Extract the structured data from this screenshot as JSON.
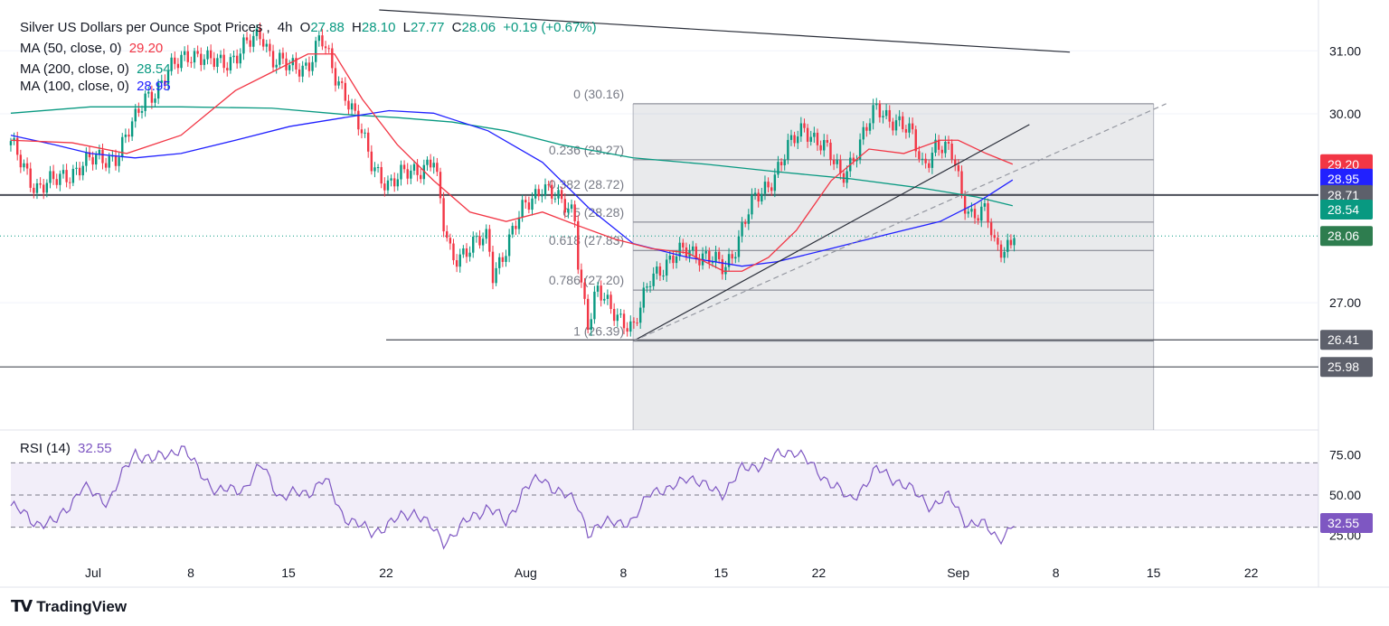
{
  "header": {
    "symbol": "Silver US Dollars per Ounce Spot Prices",
    "interval": "4h",
    "o_label": "O",
    "open": "27.88",
    "h_label": "H",
    "high": "28.10",
    "l_label": "L",
    "low": "27.77",
    "c_label": "C",
    "close": "28.06",
    "change": "+0.19 (+0.67%)"
  },
  "indicators": [
    {
      "label": "MA (50, close, 0)",
      "value": "29.20",
      "color": "#f23645"
    },
    {
      "label": "MA (200, close, 0)",
      "value": "28.54",
      "color": "#089981"
    },
    {
      "label": "MA (100, close, 0)",
      "value": "28.95",
      "color": "#2121ff"
    }
  ],
  "rsi": {
    "label": "RSI (14)",
    "value": "32.55",
    "color": "#7e57c2"
  },
  "branding": {
    "name": "TradingView"
  },
  "chart_data": {
    "type": "candlestick",
    "x_unit": "days since Jul 1",
    "x_ticks": [
      {
        "d": 0,
        "label": "Jul"
      },
      {
        "d": 7,
        "label": "8"
      },
      {
        "d": 14,
        "label": "15"
      },
      {
        "d": 21,
        "label": "22"
      },
      {
        "d": 31,
        "label": "Aug"
      },
      {
        "d": 38,
        "label": "8"
      },
      {
        "d": 45,
        "label": "15"
      },
      {
        "d": 52,
        "label": "22"
      },
      {
        "d": 62,
        "label": "Sep"
      },
      {
        "d": 69,
        "label": "8"
      },
      {
        "d": 76,
        "label": "15"
      },
      {
        "d": 83,
        "label": "22"
      }
    ],
    "y_ticks": [
      "31.00",
      "30.00",
      "27.00"
    ],
    "y_tick_values": [
      31,
      30,
      27
    ],
    "close_path": [
      [
        -5.9,
        29.5
      ],
      [
        -5.4,
        29.3
      ],
      [
        -4.1,
        28.85
      ],
      [
        -2.8,
        28.9
      ],
      [
        -0.8,
        29.2
      ],
      [
        1.75,
        29.35
      ],
      [
        3.05,
        29.9
      ],
      [
        3.7,
        30.3
      ],
      [
        4.7,
        30.4
      ],
      [
        6.3,
        30.9
      ],
      [
        6.9,
        31.0
      ],
      [
        8.2,
        30.8
      ],
      [
        10.2,
        30.9
      ],
      [
        12.1,
        31.3
      ],
      [
        12.8,
        30.9
      ],
      [
        14.1,
        30.7
      ],
      [
        15.4,
        30.8
      ],
      [
        16.3,
        31.2
      ],
      [
        17.3,
        30.6
      ],
      [
        18.0,
        30.4
      ],
      [
        18.9,
        29.9
      ],
      [
        19.9,
        29.2
      ],
      [
        21.2,
        28.9
      ],
      [
        23.1,
        29.1
      ],
      [
        24.4,
        29.3
      ],
      [
        25.1,
        28.2
      ],
      [
        25.7,
        27.7
      ],
      [
        27.0,
        27.9
      ],
      [
        28.3,
        28.0
      ],
      [
        28.6,
        27.45
      ],
      [
        29.6,
        27.9
      ],
      [
        30.9,
        28.5
      ],
      [
        32.2,
        28.9
      ],
      [
        33.5,
        28.55
      ],
      [
        34.5,
        28.45
      ],
      [
        34.8,
        27.6
      ],
      [
        35.5,
        26.6
      ],
      [
        36.1,
        27.15
      ],
      [
        37.4,
        26.9
      ],
      [
        38.7,
        26.5
      ],
      [
        40.0,
        27.5
      ],
      [
        41.3,
        27.6
      ],
      [
        42.6,
        27.9
      ],
      [
        43.9,
        27.7
      ],
      [
        45.2,
        27.55
      ],
      [
        45.8,
        27.8
      ],
      [
        47.1,
        28.5
      ],
      [
        48.4,
        28.9
      ],
      [
        49.7,
        29.4
      ],
      [
        51.0,
        29.8
      ],
      [
        52.3,
        29.5
      ],
      [
        53.6,
        29.0
      ],
      [
        54.9,
        29.5
      ],
      [
        56.2,
        30.1
      ],
      [
        57.5,
        29.9
      ],
      [
        58.8,
        29.6
      ],
      [
        59.4,
        29.2
      ],
      [
        60.4,
        29.5
      ],
      [
        61.7,
        29.3
      ],
      [
        62.3,
        28.7
      ],
      [
        63.0,
        28.4
      ],
      [
        64.0,
        28.4
      ],
      [
        64.6,
        27.9
      ],
      [
        65.3,
        27.9
      ],
      [
        66.2,
        28.06
      ]
    ],
    "ma50": [
      [
        -5.9,
        29.58
      ],
      [
        -1.5,
        29.54
      ],
      [
        2.4,
        29.37
      ],
      [
        6.3,
        29.66
      ],
      [
        10.2,
        30.37
      ],
      [
        12.8,
        30.66
      ],
      [
        15.4,
        30.95
      ],
      [
        17.3,
        30.95
      ],
      [
        19.3,
        30.23
      ],
      [
        21.8,
        29.51
      ],
      [
        24.4,
        28.94
      ],
      [
        27.0,
        28.44
      ],
      [
        29.6,
        28.29
      ],
      [
        32.2,
        28.44
      ],
      [
        34.8,
        28.22
      ],
      [
        37.4,
        28.01
      ],
      [
        40.0,
        27.86
      ],
      [
        42.6,
        27.79
      ],
      [
        45.2,
        27.5
      ],
      [
        46.5,
        27.5
      ],
      [
        48.4,
        27.72
      ],
      [
        50.4,
        28.15
      ],
      [
        52.9,
        28.94
      ],
      [
        55.6,
        29.44
      ],
      [
        58.1,
        29.37
      ],
      [
        60.7,
        29.58
      ],
      [
        62.0,
        29.58
      ],
      [
        64.0,
        29.37
      ],
      [
        65.9,
        29.2
      ]
    ],
    "ma100": [
      [
        -5.9,
        29.66
      ],
      [
        -2.8,
        29.51
      ],
      [
        -0.2,
        29.37
      ],
      [
        3.0,
        29.3
      ],
      [
        6.3,
        29.37
      ],
      [
        10.2,
        29.58
      ],
      [
        14.1,
        29.8
      ],
      [
        18.0,
        29.94
      ],
      [
        21.2,
        30.05
      ],
      [
        24.4,
        30.01
      ],
      [
        28.3,
        29.73
      ],
      [
        32.2,
        29.23
      ],
      [
        35.5,
        28.51
      ],
      [
        38.7,
        27.94
      ],
      [
        42.6,
        27.72
      ],
      [
        46.5,
        27.58
      ],
      [
        49.0,
        27.65
      ],
      [
        52.9,
        27.86
      ],
      [
        56.8,
        28.08
      ],
      [
        60.7,
        28.29
      ],
      [
        63.3,
        28.58
      ],
      [
        65.9,
        28.95
      ]
    ],
    "ma200": [
      [
        -5.9,
        30.01
      ],
      [
        -0.2,
        30.11
      ],
      [
        6.3,
        30.11
      ],
      [
        12.8,
        30.09
      ],
      [
        18.0,
        29.99
      ],
      [
        21.8,
        29.94
      ],
      [
        25.7,
        29.87
      ],
      [
        29.6,
        29.73
      ],
      [
        33.5,
        29.51
      ],
      [
        38.7,
        29.3
      ],
      [
        43.9,
        29.2
      ],
      [
        49.0,
        29.08
      ],
      [
        54.2,
        28.97
      ],
      [
        59.4,
        28.82
      ],
      [
        63.3,
        28.68
      ],
      [
        65.9,
        28.54
      ]
    ],
    "horizontal_levels": [
      {
        "price": 28.71,
        "label": "28.71"
      },
      {
        "price": 26.41,
        "label": "26.41"
      },
      {
        "price": 25.98,
        "label": "25.98"
      }
    ],
    "last_price": {
      "price": 28.06,
      "label": "28.06"
    },
    "ma_tags": [
      {
        "price": 29.2,
        "label": "29.20",
        "color": "#f23645"
      },
      {
        "price": 28.95,
        "label": "28.95",
        "color": "#2121ff"
      },
      {
        "price": 28.54,
        "label": "28.54",
        "color": "#089981"
      }
    ],
    "fibonacci": {
      "start_day": 38.7,
      "end_day": 76,
      "levels": [
        {
          "ratio": "0",
          "price": 30.16
        },
        {
          "ratio": "0.236",
          "price": 29.27
        },
        {
          "ratio": "0.382",
          "price": 28.72
        },
        {
          "ratio": "0.5",
          "price": 28.28
        },
        {
          "ratio": "0.618",
          "price": 27.83
        },
        {
          "ratio": "0.786",
          "price": 27.2
        },
        {
          "ratio": "1",
          "price": 26.39
        }
      ],
      "labels": [
        "0 (30.16)",
        "0.236 (29.27)",
        "0.382 (28.72)",
        "0.5 (28.28)",
        "0.618 (27.83)",
        "0.786 (27.20)",
        "1 (26.39)"
      ]
    },
    "trendlines": [
      {
        "style": "solid",
        "from": [
          38.7,
          26.39
        ],
        "end": [
          67.1,
          29.83
        ]
      },
      {
        "style": "dashed",
        "from": [
          38.7,
          26.39
        ],
        "end": [
          76.9,
          30.16
        ]
      },
      {
        "style": "solid",
        "from": [
          20.5,
          31.65
        ],
        "end": [
          70.0,
          30.98
        ]
      }
    ],
    "rsi_ticks": [
      "75.00",
      "50.00",
      "25.00"
    ],
    "rsi_tick_values": [
      75,
      50,
      25
    ],
    "rsi_band": [
      30,
      70
    ],
    "rsi_path": [
      [
        -5.9,
        43.3
      ],
      [
        -4.1,
        33.1
      ],
      [
        -2.8,
        32
      ],
      [
        -0.8,
        54.5
      ],
      [
        1.1,
        46
      ],
      [
        3.0,
        77
      ],
      [
        4.3,
        71.3
      ],
      [
        6.3,
        79.8
      ],
      [
        7.3,
        68.5
      ],
      [
        8.9,
        51.7
      ],
      [
        10.8,
        54.5
      ],
      [
        12.1,
        68.5
      ],
      [
        13.4,
        48.9
      ],
      [
        15.4,
        51.7
      ],
      [
        16.6,
        60
      ],
      [
        17.9,
        37.6
      ],
      [
        19.9,
        26.4
      ],
      [
        21.2,
        32
      ],
      [
        23.1,
        40.4
      ],
      [
        25.1,
        20.8
      ],
      [
        27.0,
        34.8
      ],
      [
        28.3,
        43.3
      ],
      [
        29.6,
        32
      ],
      [
        30.9,
        54.5
      ],
      [
        32.2,
        60
      ],
      [
        33.5,
        51.7
      ],
      [
        34.8,
        43.3
      ],
      [
        35.5,
        26.4
      ],
      [
        37.4,
        34.8
      ],
      [
        38.7,
        32
      ],
      [
        40.0,
        54.5
      ],
      [
        41.3,
        51.7
      ],
      [
        42.6,
        62.9
      ],
      [
        43.9,
        54.5
      ],
      [
        45.2,
        51.7
      ],
      [
        46.5,
        65.7
      ],
      [
        48.4,
        71.3
      ],
      [
        49.7,
        77
      ],
      [
        50.4,
        78
      ],
      [
        51.7,
        65.7
      ],
      [
        53.0,
        57.3
      ],
      [
        54.2,
        46
      ],
      [
        56.2,
        65.7
      ],
      [
        57.5,
        60
      ],
      [
        58.8,
        51.7
      ],
      [
        60.1,
        43.3
      ],
      [
        61.4,
        48.9
      ],
      [
        62.7,
        32
      ],
      [
        64.0,
        30.9
      ],
      [
        64.9,
        23.6
      ],
      [
        65.6,
        26.4
      ],
      [
        66.2,
        32.6
      ]
    ]
  }
}
